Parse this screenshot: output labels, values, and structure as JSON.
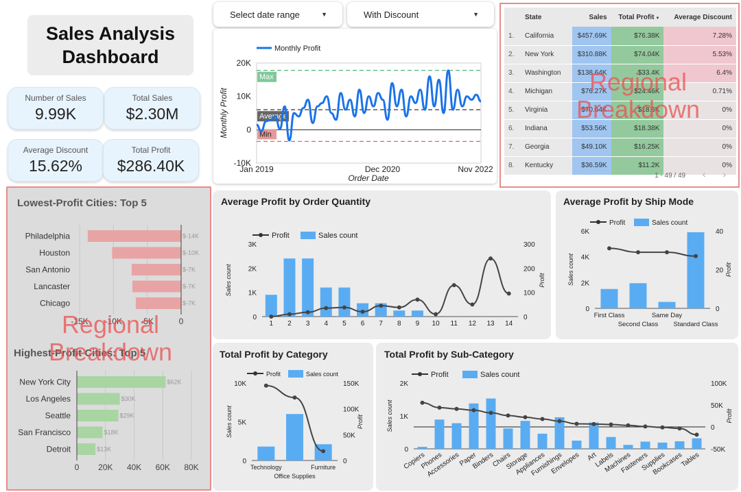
{
  "dashboard": {
    "title_line1": "Sales Analysis",
    "title_line2": "Dashboard"
  },
  "kpis": {
    "number_of_sales": {
      "label": "Number of Sales",
      "value": "9.99K"
    },
    "total_sales": {
      "label": "Total Sales",
      "value": "$2.30M"
    },
    "average_discount": {
      "label": "Average Discount",
      "value": "15.62%"
    },
    "total_profit": {
      "label": "Total Profit",
      "value": "$286.40K"
    }
  },
  "filters": {
    "date_range": "Select date range",
    "discount": "With Discount"
  },
  "watermark": {
    "line1": "Regional",
    "line2": "Breakdown"
  },
  "state_table": {
    "headers": [
      "State",
      "Sales",
      "Total Profit",
      "Average Discount"
    ],
    "rows": [
      {
        "num": "1.",
        "state": "California",
        "sales": "$457.69K",
        "profit": "$76.38K",
        "discount": "7.28%"
      },
      {
        "num": "2.",
        "state": "New York",
        "sales": "$310.88K",
        "profit": "$74.04K",
        "discount": "5.53%"
      },
      {
        "num": "3.",
        "state": "Washington",
        "sales": "$138.64K",
        "profit": "$33.4K",
        "discount": "6.4%"
      },
      {
        "num": "4.",
        "state": "Michigan",
        "sales": "$76.27K",
        "profit": "$24.46K",
        "discount": "0.71%"
      },
      {
        "num": "5.",
        "state": "Virginia",
        "sales": "$70.64K",
        "profit": "$18.6K",
        "discount": "0%"
      },
      {
        "num": "6.",
        "state": "Indiana",
        "sales": "$53.56K",
        "profit": "$18.38K",
        "discount": "0%"
      },
      {
        "num": "7.",
        "state": "Georgia",
        "sales": "$49.10K",
        "profit": "$16.25K",
        "discount": "0%"
      },
      {
        "num": "8.",
        "state": "Kentucky",
        "sales": "$36.59K",
        "profit": "$11.2K",
        "discount": "0%"
      }
    ],
    "pagination": "1 - 49 / 49",
    "colors": {
      "sales": "#9fc5f0",
      "profit": "#93c99d",
      "discount": "#f0c7cf"
    }
  },
  "chart_data": [
    {
      "id": "monthly_profit",
      "type": "line",
      "legend": "Monthly Profit",
      "xlabel": "Order Date",
      "ylabel": "Monthly Profit",
      "x_ticks": [
        "Jan 2019",
        "Dec 2020",
        "Nov 2022"
      ],
      "y_ticks": [
        "20K",
        "10K",
        "0",
        "-10K"
      ],
      "ylim": [
        -10000,
        20000
      ],
      "reference_lines": {
        "max_label": "Max",
        "average_label": "Average",
        "min_label": "Min",
        "max": 17800,
        "average": 6000,
        "min": -3500
      },
      "values": [
        1500,
        -500,
        2500,
        3000,
        4000,
        200,
        7000,
        -3200,
        5000,
        4000,
        6500,
        9000,
        2000,
        7000,
        8000,
        10000,
        5000,
        3000,
        11000,
        6000,
        9000,
        4000,
        12000,
        5000,
        10000,
        7000,
        11000,
        9000,
        3000,
        14000,
        7000,
        12000,
        4000,
        10000,
        8000,
        12000,
        6000,
        16000,
        7000,
        15000,
        5000,
        17800,
        6000,
        12000,
        7000,
        10000,
        9000,
        10500,
        8500
      ],
      "color": "#1a73e8"
    },
    {
      "id": "lowest_profit_cities",
      "title": "Lowest-Profit Cities: Top 5",
      "type": "bar",
      "categories": [
        "Philadelphia",
        "Houston",
        "San Antonio",
        "Lancaster",
        "Chicago"
      ],
      "values": [
        -13800,
        -10200,
        -7300,
        -7200,
        -6700
      ],
      "value_labels": [
        "$-14K",
        "$-10K",
        "$-7K",
        "$-7K",
        "$-7K"
      ],
      "x_ticks": [
        "-15K",
        "-10K",
        "-5K",
        "0"
      ],
      "xlim": [
        -15000,
        0
      ],
      "color": "#e8a4a4"
    },
    {
      "id": "highest_profit_cities",
      "title": "Highest-Profit Cities: Top 5",
      "type": "bar",
      "categories": [
        "New York City",
        "Los Angeles",
        "Seattle",
        "San Francisco",
        "Detroit"
      ],
      "values": [
        62000,
        30000,
        29000,
        18000,
        13000
      ],
      "value_labels": [
        "$62K",
        "$30K",
        "$29K",
        "$18K",
        "$13K"
      ],
      "x_ticks": [
        "0",
        "20K",
        "40K",
        "60K",
        "80K"
      ],
      "xlim": [
        0,
        80000
      ],
      "color": "#a8d5a2"
    },
    {
      "id": "avg_profit_by_quantity",
      "title": "Average Profit by Order Quantity",
      "type": "bar",
      "legend": [
        "Profit",
        "Sales count"
      ],
      "categories": [
        "1",
        "2",
        "3",
        "4",
        "5",
        "6",
        "7",
        "8",
        "9",
        "10",
        "11",
        "12",
        "13",
        "14"
      ],
      "bar_values": [
        900,
        2400,
        2400,
        1200,
        1200,
        550,
        550,
        250,
        250,
        0,
        0,
        0,
        0,
        0
      ],
      "line_values": [
        0,
        10,
        18,
        35,
        38,
        20,
        45,
        38,
        70,
        10,
        130,
        50,
        240,
        95
      ],
      "ylabel_left": "Sales count",
      "ylabel_right": "Profit",
      "y_left_ticks": [
        "3K",
        "2K",
        "1K",
        "0"
      ],
      "y_right_ticks": [
        "300",
        "200",
        "100",
        "0"
      ],
      "ylim_left": [
        0,
        3000
      ],
      "ylim_right": [
        0,
        300
      ]
    },
    {
      "id": "avg_profit_by_ship_mode",
      "title": "Average Profit by Ship Mode",
      "type": "bar",
      "legend": [
        "Profit",
        "Sales count"
      ],
      "categories": [
        "First Class",
        "Second Class",
        "Same Day",
        "Standard Class"
      ],
      "bar_values": [
        1500,
        1950,
        500,
        5900
      ],
      "line_values": [
        31,
        29,
        29,
        27
      ],
      "ylabel_left": "Sales count",
      "ylabel_right": "Profit",
      "y_left_ticks": [
        "6K",
        "4K",
        "2K",
        "0"
      ],
      "y_right_ticks": [
        "40",
        "20",
        "0"
      ],
      "ylim_left": [
        0,
        6000
      ],
      "ylim_right": [
        0,
        40
      ]
    },
    {
      "id": "total_profit_by_category",
      "title": "Total Profit by Category",
      "type": "bar",
      "legend": [
        "Profit",
        "Sales count"
      ],
      "categories": [
        "Technology",
        "Office Supplies",
        "Furniture"
      ],
      "bar_values": [
        1800,
        6000,
        2100
      ],
      "line_values": [
        145000,
        122000,
        18000
      ],
      "ylabel_left": "Sales count",
      "ylabel_right": "Profit",
      "y_left_ticks": [
        "10K",
        "5K",
        "0"
      ],
      "y_right_ticks": [
        "150K",
        "100K",
        "50K",
        "0"
      ],
      "ylim_left": [
        0,
        10000
      ],
      "ylim_right": [
        0,
        150000
      ]
    },
    {
      "id": "total_profit_by_subcategory",
      "title": "Total Profit by Sub-Category",
      "type": "bar",
      "legend": [
        "Profit",
        "Sales count"
      ],
      "categories": [
        "Copiers",
        "Phones",
        "Accessories",
        "Paper",
        "Binders",
        "Chairs",
        "Storage",
        "Appliances",
        "Furnishings",
        "Envelopes",
        "Art",
        "Labels",
        "Machines",
        "Fasteners",
        "Supplies",
        "Bookcases",
        "Tables"
      ],
      "bar_values": [
        60,
        890,
        780,
        1380,
        1530,
        620,
        850,
        460,
        960,
        250,
        800,
        360,
        120,
        220,
        190,
        230,
        320
      ],
      "line_values": [
        55000,
        44000,
        41000,
        38000,
        32000,
        26000,
        22000,
        18000,
        13000,
        7000,
        6500,
        5500,
        3500,
        950,
        -1200,
        -3500,
        -17700
      ],
      "ylabel_left": "Sales count",
      "ylabel_right": "Profit",
      "y_left_ticks": [
        "2K",
        "1K",
        "0"
      ],
      "y_right_ticks": [
        "100K",
        "50K",
        "0",
        "-50K"
      ],
      "ylim_left": [
        0,
        2000
      ],
      "ylim_right": [
        -50000,
        100000
      ]
    }
  ],
  "colors": {
    "bar": "#5aacf2",
    "line": "#333333",
    "panel": "#ececec"
  }
}
